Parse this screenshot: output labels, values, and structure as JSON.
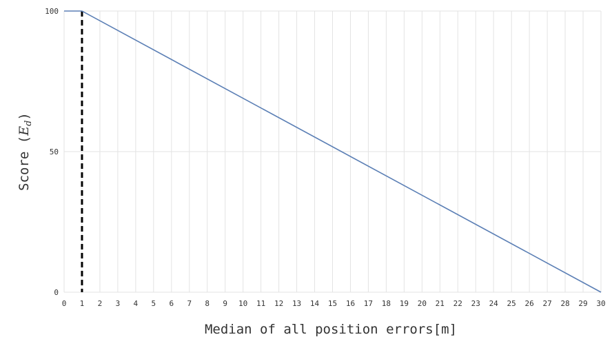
{
  "chart_data": {
    "type": "line",
    "title": "",
    "xlabel": "Median of all position errors[m]",
    "ylabel_prefix": "Score (",
    "ylabel_symbol": "E",
    "ylabel_subscript": "d",
    "ylabel_suffix": ")",
    "xlim": [
      0,
      30
    ],
    "ylim": [
      0,
      100
    ],
    "xticks": [
      0,
      1,
      2,
      3,
      4,
      5,
      6,
      7,
      8,
      9,
      10,
      11,
      12,
      13,
      14,
      15,
      16,
      17,
      18,
      19,
      20,
      21,
      22,
      23,
      24,
      25,
      26,
      27,
      28,
      29,
      30
    ],
    "yticks": [
      0,
      50,
      100
    ],
    "grid": true,
    "series": [
      {
        "x": [
          0,
          1,
          30
        ],
        "y": [
          100,
          100,
          0
        ],
        "color": "#5b7fb5"
      }
    ],
    "reference_line": {
      "x": 1,
      "style": "dashed",
      "color": "#000000"
    }
  }
}
